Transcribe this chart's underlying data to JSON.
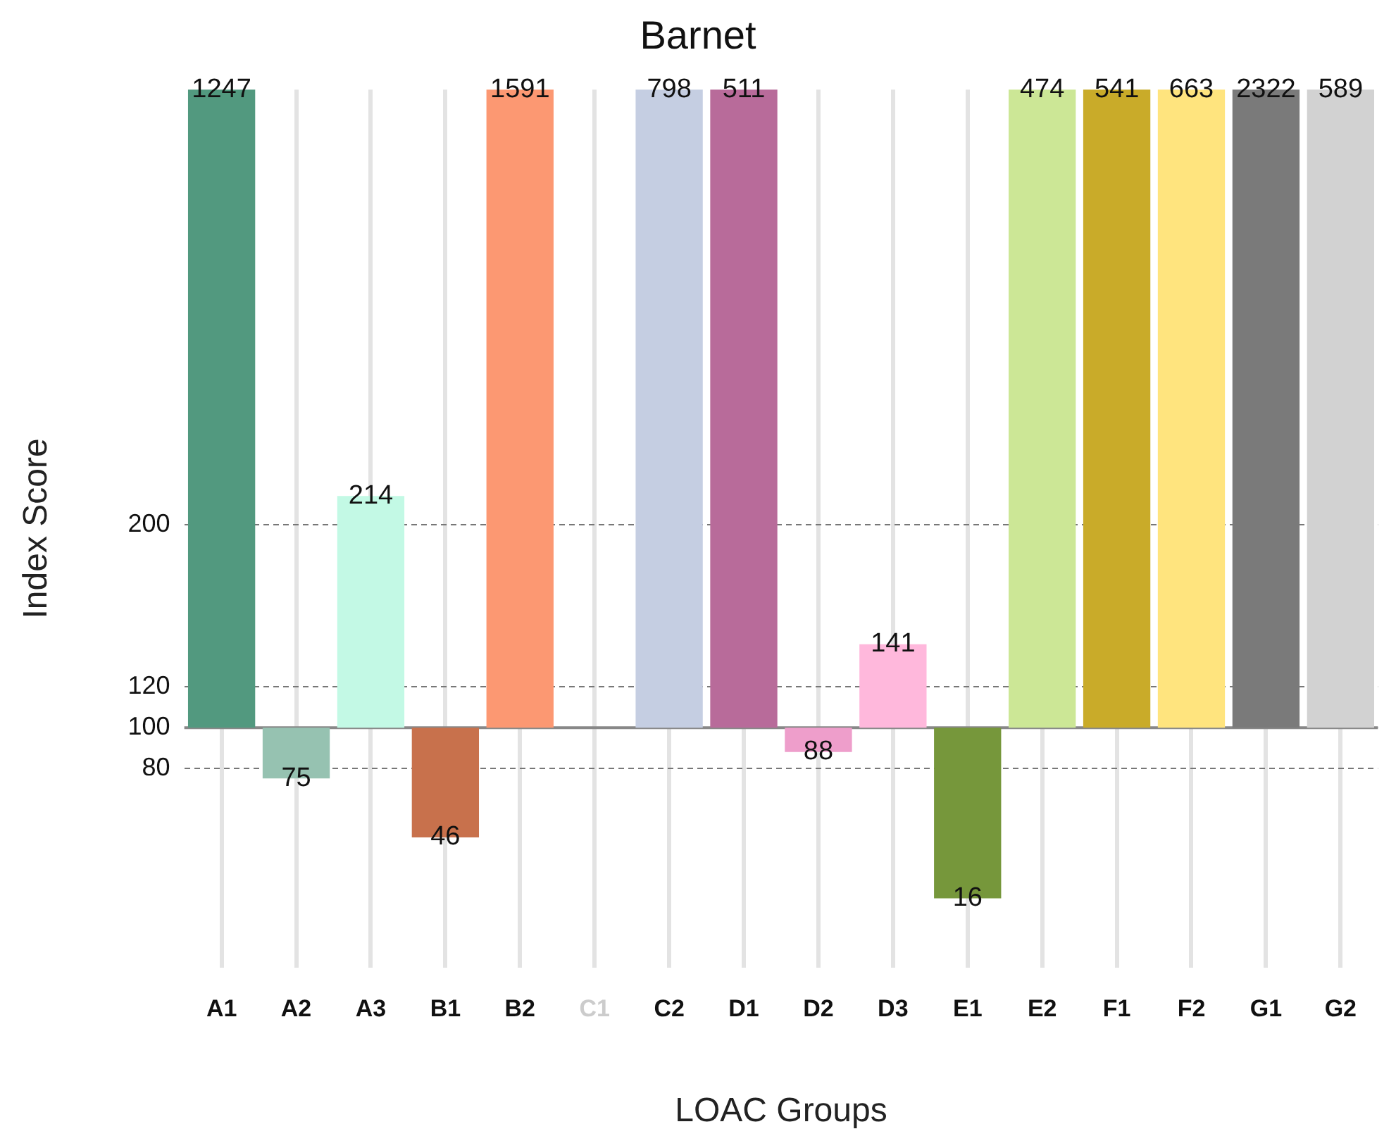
{
  "chart_data": {
    "type": "bar",
    "title": "Barnet",
    "xlabel": "LOAC Groups",
    "ylabel": "Index Score",
    "categories": [
      "A1",
      "A2",
      "A3",
      "B1",
      "B2",
      "C1",
      "C2",
      "D1",
      "D2",
      "D3",
      "E1",
      "E2",
      "F1",
      "F2",
      "G1",
      "G2"
    ],
    "base": [
      100,
      100,
      100,
      100,
      100,
      null,
      100,
      100,
      100,
      100,
      100,
      100,
      100,
      100,
      100,
      100
    ],
    "values": [
      1147,
      -25,
      114,
      -54,
      1491,
      null,
      698,
      411,
      -12,
      41,
      -84,
      374,
      441,
      563,
      2222,
      489
    ],
    "value_labels": [
      "1247",
      "75",
      "214",
      "46",
      "1591",
      null,
      "798",
      "511",
      "88",
      "141",
      "16",
      "474",
      "541",
      "663",
      "2322",
      "589"
    ],
    "colors": [
      "#52997f",
      "#96c2b1",
      "#c3f9e5",
      "#c8714c",
      "#fc9872",
      "#cccccc",
      "#c5cee2",
      "#b86b9a",
      "#ee9ecb",
      "#ffb8dc",
      "#76973b",
      "#cce796",
      "#c9ab29",
      "#ffe47e",
      "#7a7a7a",
      "#d2d2d2"
    ],
    "ylim": [
      -18,
      414
    ],
    "yticks": [
      80,
      100,
      120,
      200
    ],
    "ref_lines": [
      {
        "axis": "y",
        "value": 100,
        "color": "#888888",
        "line_style": "solid"
      }
    ],
    "grid": true,
    "legend": false
  }
}
